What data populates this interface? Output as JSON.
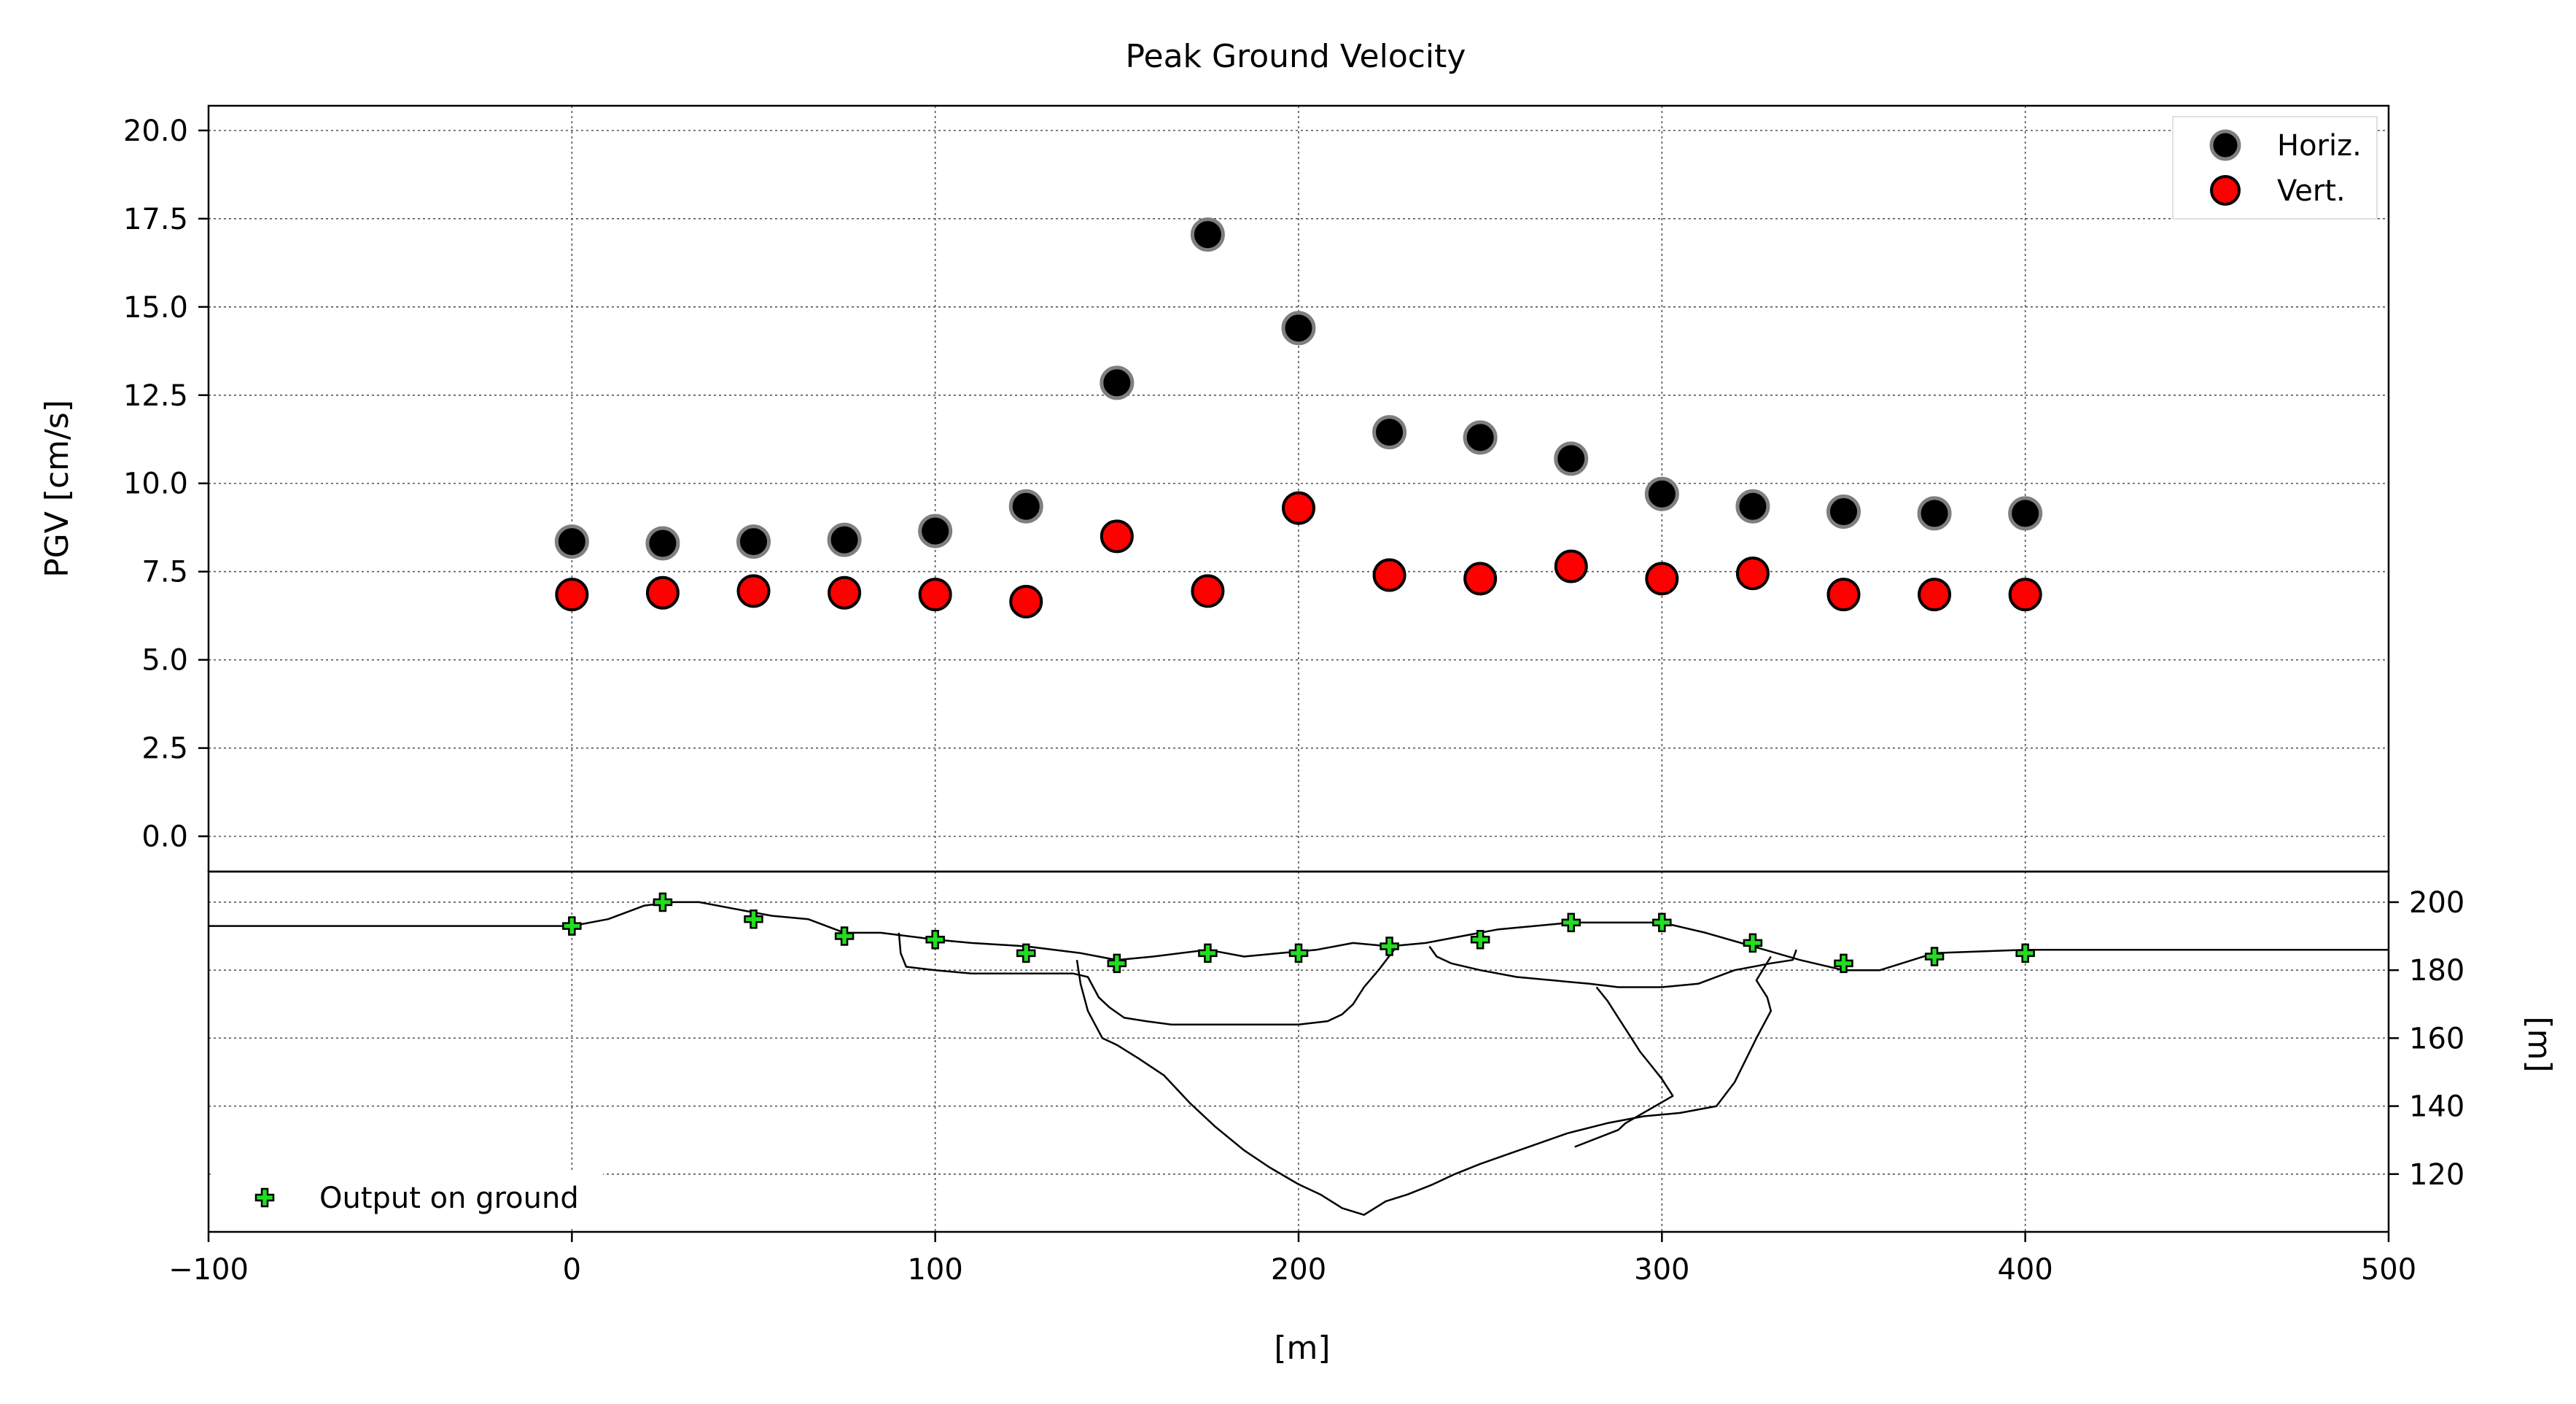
{
  "chart_data": [
    {
      "type": "scatter",
      "title": "Peak Ground Velocity",
      "xlabel": "",
      "ylabel": "PGV [cm/s]",
      "xlim": [
        -100,
        500
      ],
      "ylim": [
        -1.0,
        20.7
      ],
      "yticks": [
        0.0,
        2.5,
        5.0,
        7.5,
        10.0,
        12.5,
        15.0,
        17.5,
        20.0
      ],
      "ytick_labels": [
        "0.0",
        "2.5",
        "5.0",
        "7.5",
        "10.0",
        "12.5",
        "15.0",
        "17.5",
        "20.0"
      ],
      "grid": true,
      "legend_position": "top-right",
      "series": [
        {
          "name": "Horiz.",
          "color": "#000000",
          "edge_color": "#7f7f7f",
          "x": [
            0,
            25,
            50,
            75,
            100,
            125,
            150,
            175,
            200,
            225,
            250,
            275,
            300,
            325,
            350,
            375,
            400
          ],
          "values": [
            8.35,
            8.3,
            8.35,
            8.4,
            8.65,
            9.35,
            12.85,
            17.05,
            14.4,
            11.45,
            11.3,
            10.7,
            9.7,
            9.35,
            9.2,
            9.15,
            9.15
          ]
        },
        {
          "name": "Vert.",
          "color": "#ff0000",
          "edge_color": "#000000",
          "x": [
            0,
            25,
            50,
            75,
            100,
            125,
            150,
            175,
            200,
            225,
            250,
            275,
            300,
            325,
            350,
            375,
            400
          ],
          "values": [
            6.85,
            6.9,
            6.95,
            6.9,
            6.85,
            6.65,
            8.5,
            6.95,
            9.3,
            7.4,
            7.3,
            7.65,
            7.3,
            7.45,
            6.85,
            6.85,
            6.85
          ]
        }
      ]
    },
    {
      "type": "line",
      "title": "",
      "xlabel": "[m]",
      "ylabel": "[m]",
      "xlim": [
        -100,
        500
      ],
      "ylim": [
        103,
        209
      ],
      "xticks": [
        -100,
        0,
        100,
        200,
        300,
        400,
        500
      ],
      "xtick_labels": [
        "−100",
        "0",
        "100",
        "200",
        "300",
        "400",
        "500"
      ],
      "yticks": [
        120,
        140,
        160,
        180,
        200
      ],
      "ytick_labels": [
        "120",
        "140",
        "160",
        "180",
        "200"
      ],
      "grid": true,
      "legend_position": "bottom-left",
      "series": [
        {
          "name": "",
          "color": "#000000",
          "x": [
            -100,
            -40,
            0,
            10,
            20,
            28,
            35,
            45,
            55,
            65,
            75,
            85,
            100,
            110,
            125,
            140,
            150,
            160,
            175,
            185,
            195,
            205,
            215,
            225,
            235,
            245,
            255,
            265,
            275,
            285,
            300,
            312,
            325,
            338,
            350,
            360,
            375,
            400,
            450,
            500
          ],
          "values": [
            193,
            193,
            193,
            195,
            199,
            200,
            200,
            198,
            196,
            195,
            191,
            191,
            189,
            188,
            187,
            185,
            183,
            184,
            186,
            184,
            185,
            186,
            188,
            187,
            188,
            190,
            192,
            193,
            194,
            194,
            194,
            191,
            187,
            183,
            180,
            180,
            185,
            186,
            186,
            186
          ]
        },
        {
          "name": "",
          "color": "#000000",
          "x": [
            90,
            90.5,
            92,
            100,
            110,
            125,
            138,
            142,
            145,
            148,
            152,
            158,
            165,
            172,
            180,
            190,
            200,
            208,
            212,
            215,
            218,
            222,
            227
          ],
          "values": [
            191,
            185,
            181,
            180,
            179,
            179,
            179,
            178,
            172,
            169,
            166,
            165,
            164,
            164,
            164,
            164,
            164,
            165,
            167,
            170,
            175,
            180,
            187
          ]
        },
        {
          "name": "",
          "color": "#000000",
          "x": [
            139,
            140,
            142,
            144,
            146,
            150,
            156,
            163,
            170,
            177,
            185,
            192,
            200,
            206,
            212,
            218,
            224,
            230,
            237,
            243,
            250,
            258,
            266,
            274,
            285,
            295,
            305,
            315,
            320,
            326,
            330,
            329,
            326,
            330
          ],
          "values": [
            183,
            176,
            168,
            164,
            160,
            158,
            154,
            149,
            141,
            134,
            127,
            122,
            117,
            114,
            110,
            108,
            112,
            114,
            117,
            120,
            123,
            126,
            129,
            132,
            135,
            137,
            138,
            140,
            147,
            160,
            168,
            172,
            177,
            184
          ]
        },
        {
          "name": "",
          "color": "#000000",
          "x": [
            236,
            238,
            242,
            250,
            260,
            270,
            280,
            288,
            300,
            310,
            320,
            330,
            336,
            337
          ],
          "values": [
            187,
            184,
            182,
            180,
            178,
            177,
            176,
            175,
            175,
            176,
            180,
            182,
            183,
            186
          ]
        },
        {
          "name": "",
          "color": "#000000",
          "x": [
            282,
            285,
            288,
            291,
            294,
            297,
            300,
            303,
            290,
            288,
            276
          ],
          "values": [
            175,
            171,
            166,
            161,
            156,
            152,
            148,
            143,
            135,
            133,
            128
          ]
        },
        {
          "name": "Output on ground",
          "color": "#22dd22",
          "x": [
            0,
            25,
            50,
            75,
            100,
            125,
            150,
            175,
            200,
            225,
            250,
            275,
            300,
            325,
            350,
            375,
            400
          ],
          "values": [
            193,
            200,
            195,
            190,
            189,
            185,
            182,
            185,
            185,
            187,
            189,
            194,
            194,
            188,
            182,
            184,
            185
          ]
        }
      ]
    }
  ]
}
